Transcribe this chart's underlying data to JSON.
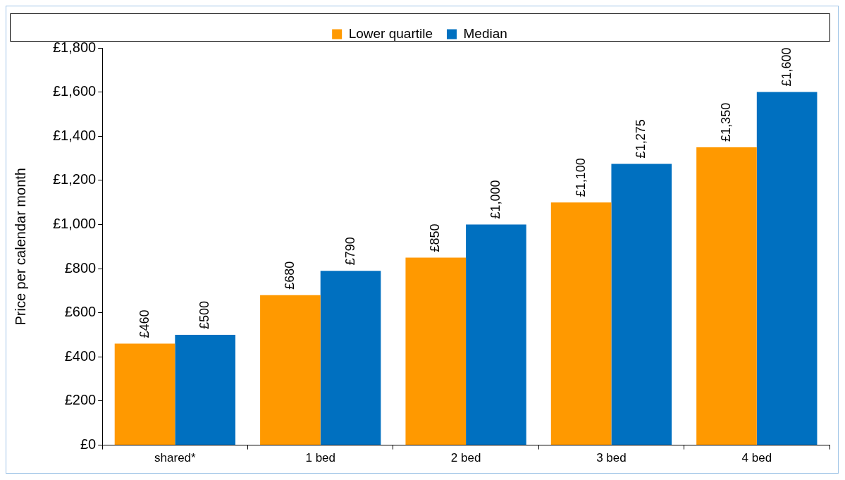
{
  "chart_data": {
    "type": "bar",
    "ylabel": "Price per calendar month",
    "categories": [
      "shared*",
      "1 bed",
      "2 bed",
      "3 bed",
      "4 bed"
    ],
    "series": [
      {
        "name": "Lower quartile",
        "color": "#ff9900",
        "values": [
          460,
          680,
          850,
          1100,
          1350
        ],
        "value_labels": [
          "£460",
          "£680",
          "£850",
          "£1,100",
          "£1,350"
        ]
      },
      {
        "name": "Median",
        "color": "#0070c0",
        "values": [
          500,
          790,
          1000,
          1275,
          1600
        ],
        "value_labels": [
          "£500",
          "£790",
          "£1,000",
          "£1,275",
          "£1,600"
        ]
      }
    ],
    "ylim": [
      0,
      1800
    ],
    "yticks": [
      {
        "value": 0,
        "label": "£0"
      },
      {
        "value": 200,
        "label": "£200"
      },
      {
        "value": 400,
        "label": "£400"
      },
      {
        "value": 600,
        "label": "£600"
      },
      {
        "value": 800,
        "label": "£800"
      },
      {
        "value": 1000,
        "label": "£1,000"
      },
      {
        "value": 1200,
        "label": "£1,200"
      },
      {
        "value": 1400,
        "label": "£1,400"
      },
      {
        "value": 1600,
        "label": "£1,600"
      },
      {
        "value": 1800,
        "label": "£1,800"
      }
    ],
    "grid": false,
    "legend": "top"
  }
}
